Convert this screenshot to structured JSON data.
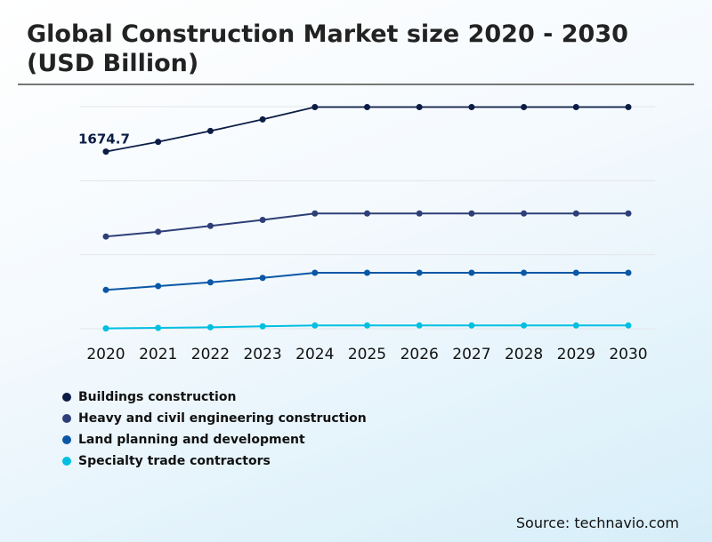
{
  "chart_data": {
    "type": "line",
    "title": "Global Construction Market size 2020 - 2030 (USD Billion)",
    "xlabel": "",
    "ylabel": "",
    "categories": [
      "2020",
      "2021",
      "2022",
      "2023",
      "2024",
      "2025",
      "2026",
      "2027",
      "2028",
      "2029",
      "2030"
    ],
    "ylim": [
      0,
      2100
    ],
    "grid": true,
    "gridlines": [
      0,
      700,
      1400,
      2100
    ],
    "legend_position": "bottom-left",
    "series": [
      {
        "name": "Buildings construction",
        "color": "#0b1c45",
        "values": [
          1674.7,
          1767,
          1870,
          1979,
          2096,
          2096,
          2096,
          2096,
          2096,
          2096,
          2096
        ]
      },
      {
        "name": "Heavy and civil engineering construction",
        "color": "#2e3f78",
        "values": [
          872,
          917,
          972,
          1029,
          1090,
          1090,
          1090,
          1090,
          1090,
          1090,
          1090
        ]
      },
      {
        "name": "Land planning and development",
        "color": "#0a57a6",
        "values": [
          367,
          403,
          439,
          481,
          529,
          529,
          529,
          529,
          529,
          529,
          529
        ]
      },
      {
        "name": "Specialty trade contractors",
        "color": "#00bfe0",
        "values": [
          3,
          8,
          14,
          23,
          31,
          31,
          31,
          31,
          31,
          31,
          31
        ]
      }
    ],
    "annotations": [
      {
        "series": 0,
        "index": 0,
        "text": "1674.7"
      }
    ]
  },
  "source": "Source: technavio.com"
}
